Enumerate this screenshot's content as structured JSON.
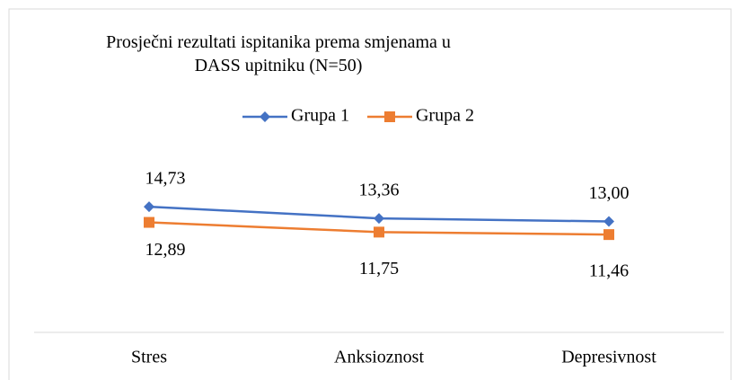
{
  "chart_data": {
    "type": "line",
    "title": "Prosječni rezultati ispitanika prema smjenama u DASS upitniku (N=50)",
    "categories": [
      "Stres",
      "Anksioznost",
      "Depresivnost"
    ],
    "series": [
      {
        "name": "Grupa 1",
        "color": "#4472c4",
        "marker": "diamond",
        "values": [
          14.73,
          13.36,
          13.0
        ],
        "value_labels": [
          "14,73",
          "13,36",
          "13,00"
        ]
      },
      {
        "name": "Grupa 2",
        "color": "#ed7d31",
        "marker": "square",
        "values": [
          12.89,
          11.75,
          11.46
        ],
        "value_labels": [
          "12,89",
          "11,75",
          "11,46"
        ]
      }
    ],
    "ylim": [
      0,
      20
    ],
    "legend": "top"
  }
}
